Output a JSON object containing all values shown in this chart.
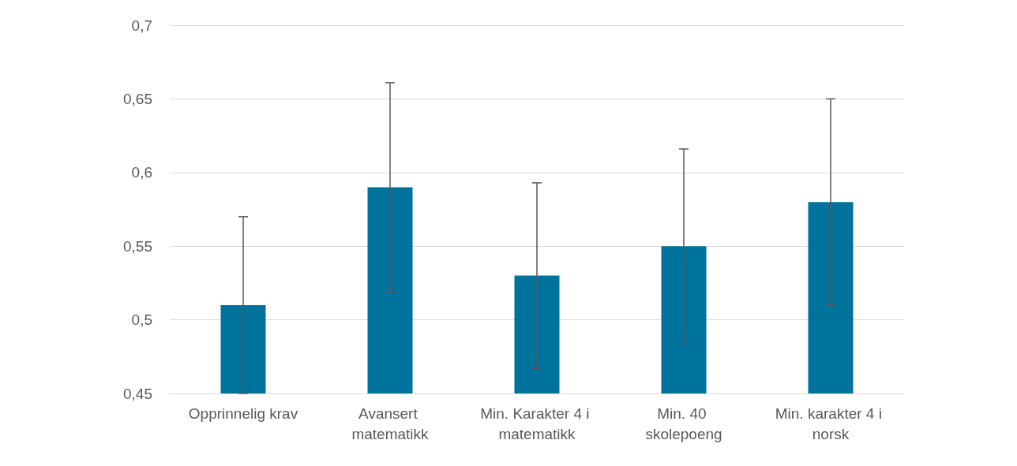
{
  "chart_data": {
    "type": "bar",
    "categories": [
      "Opprinnelig krav",
      "Avansert matematikk",
      "Min. Karakter 4 i matematikk",
      "Min. 40 skolepoeng",
      "Min. karakter 4 i norsk"
    ],
    "values": [
      0.51,
      0.59,
      0.53,
      0.55,
      0.58
    ],
    "errors": [
      0.06,
      0.071,
      0.063,
      0.066,
      0.07
    ],
    "color": "#00739c",
    "ylim": [
      0.45,
      0.7
    ],
    "yticks": [
      {
        "value": 0.45,
        "label": "0,45"
      },
      {
        "value": 0.5,
        "label": "0,5"
      },
      {
        "value": 0.55,
        "label": "0,55"
      },
      {
        "value": 0.6,
        "label": "0,6"
      },
      {
        "value": 0.65,
        "label": "0,65"
      },
      {
        "value": 0.7,
        "label": "0,7"
      }
    ],
    "grid": "y"
  }
}
